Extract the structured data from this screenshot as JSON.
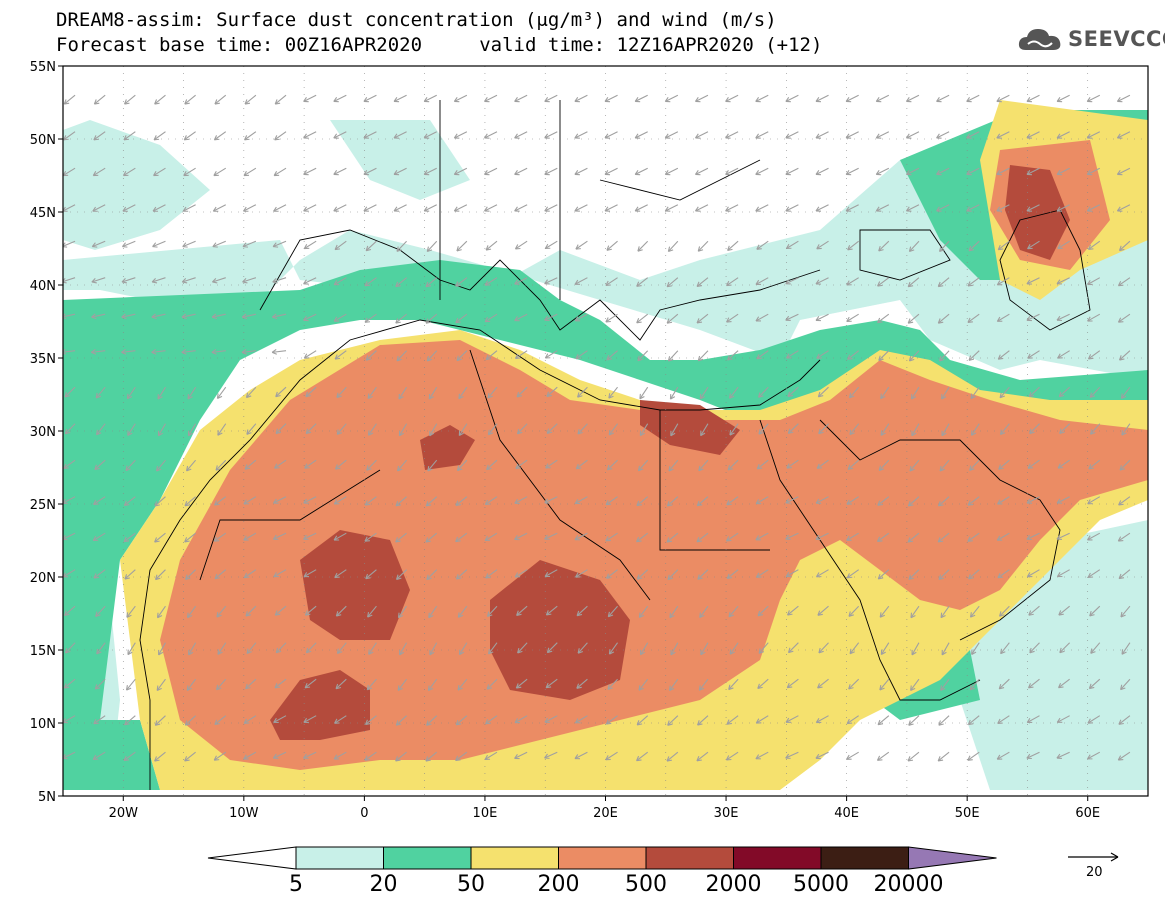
{
  "title": {
    "line1": "DREAM8-assim: Surface dust concentration (μg/m³) and wind (m/s)",
    "line2": "Forecast base time: 00Z16APR2020     valid time: 12Z16APR2020 (+12)"
  },
  "logo": {
    "text": "SEEVCCC",
    "icon": "cloud-icon"
  },
  "axes": {
    "lon_range": [
      -25,
      65
    ],
    "lat_range": [
      5,
      55
    ],
    "y_ticks": [
      {
        "value": 55,
        "label": "55N"
      },
      {
        "value": 50,
        "label": "50N"
      },
      {
        "value": 45,
        "label": "45N"
      },
      {
        "value": 40,
        "label": "40N"
      },
      {
        "value": 35,
        "label": "35N"
      },
      {
        "value": 30,
        "label": "30N"
      },
      {
        "value": 25,
        "label": "25N"
      },
      {
        "value": 20,
        "label": "20N"
      },
      {
        "value": 15,
        "label": "15N"
      },
      {
        "value": 10,
        "label": "10N"
      },
      {
        "value": 5,
        "label": "5N"
      }
    ],
    "x_ticks": [
      {
        "value": -20,
        "label": "20W"
      },
      {
        "value": -10,
        "label": "10W"
      },
      {
        "value": 0,
        "label": "0"
      },
      {
        "value": 10,
        "label": "10E"
      },
      {
        "value": 20,
        "label": "20E"
      },
      {
        "value": 30,
        "label": "30E"
      },
      {
        "value": 40,
        "label": "40E"
      },
      {
        "value": 50,
        "label": "50E"
      },
      {
        "value": 60,
        "label": "60E"
      }
    ],
    "grid": "dotted"
  },
  "colorbar": {
    "levels": [
      "5",
      "20",
      "50",
      "200",
      "500",
      "2000",
      "5000",
      "20000"
    ],
    "colors": [
      "#c8f0e8",
      "#50d2a0",
      "#f5e16e",
      "#eb8c64",
      "#b44b3c",
      "#820a28",
      "#3c1e14"
    ],
    "low_extend_color": "#ffffff",
    "high_extend_color": "#9678b4"
  },
  "wind_vector": {
    "reference_label": "20",
    "color": "#a0a0a0"
  }
}
